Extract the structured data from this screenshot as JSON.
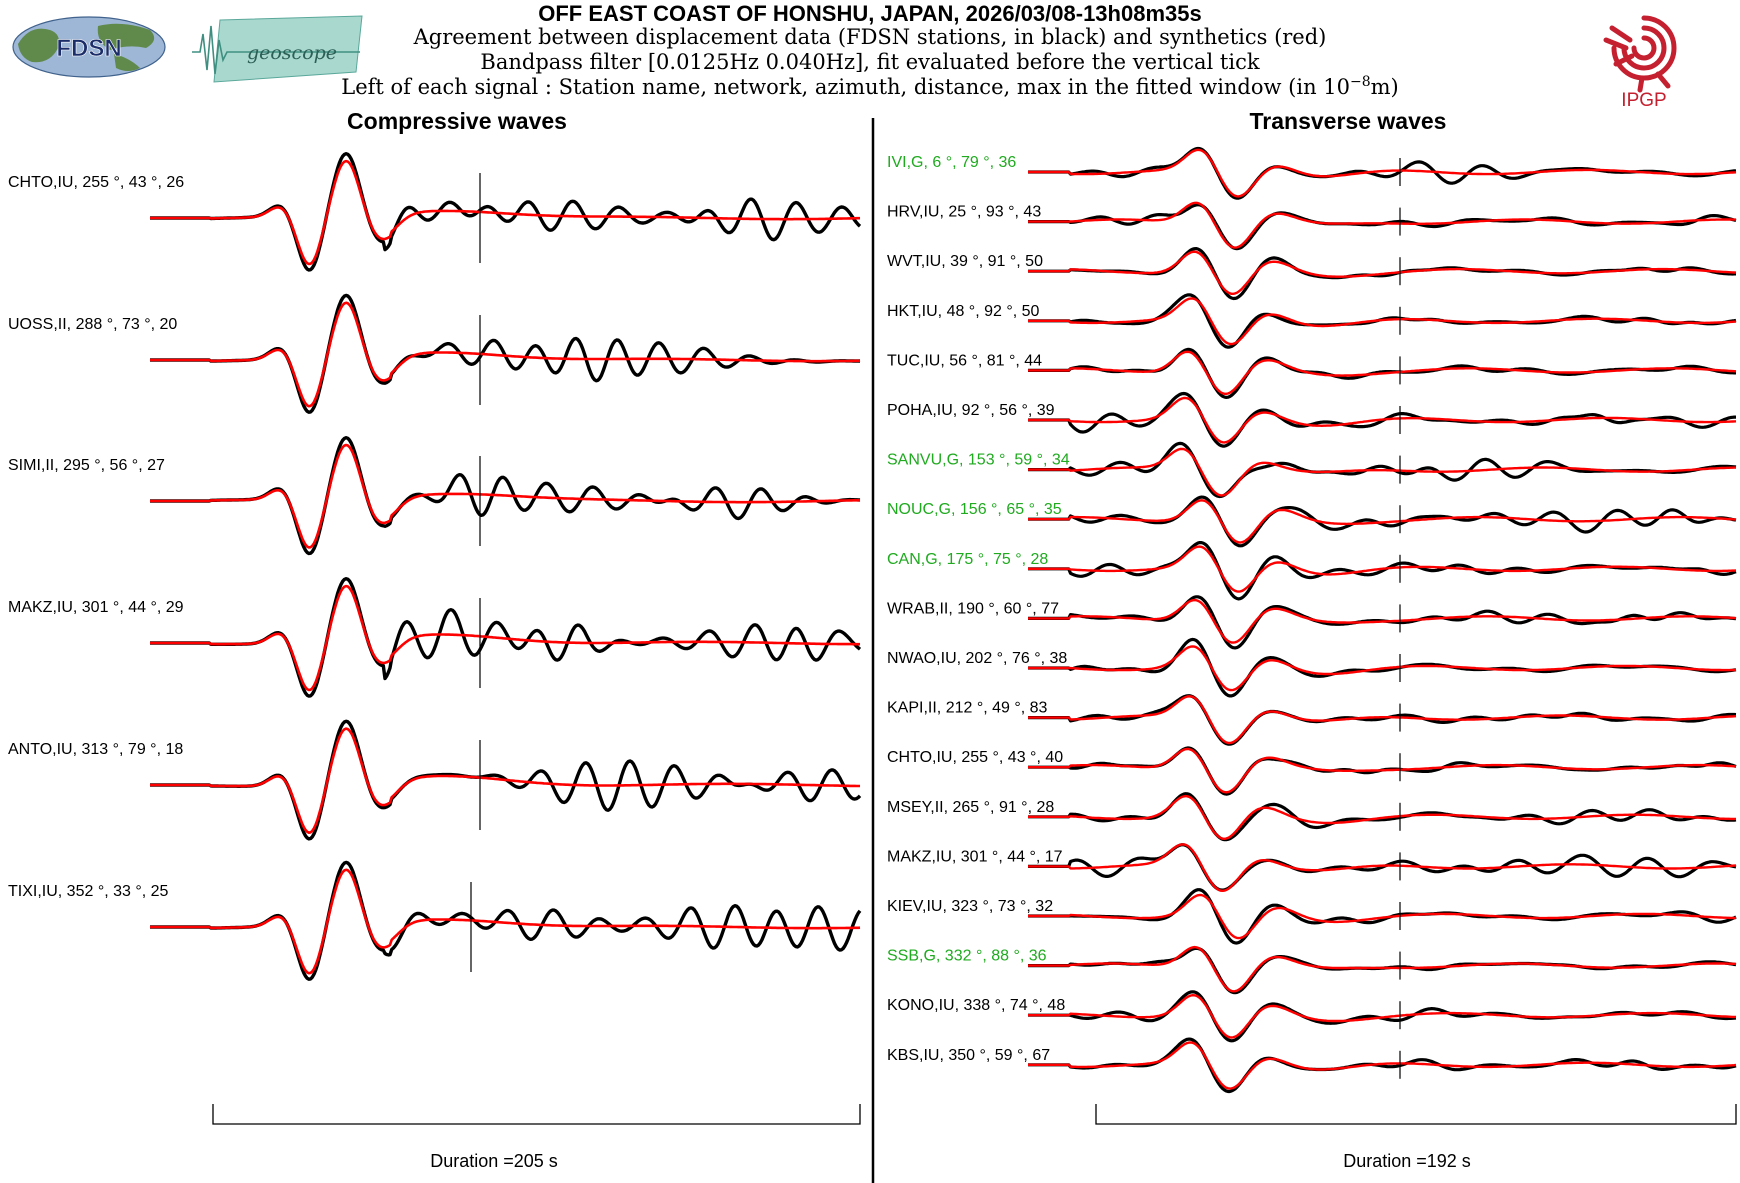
{
  "header": {
    "title": "OFF EAST COAST OF HONSHU, JAPAN, 2026/03/08-13h08m35s",
    "line1": "Agreement between displacement data (FDSN stations, in black) and synthetics (red)",
    "line2": "Bandpass filter [0.0125Hz 0.040Hz], fit evaluated before the vertical tick",
    "line3_prefix": "Left of each signal : Station name, network, azimuth, distance, max in the fitted window (in 10",
    "line3_exp": "−8",
    "line3_suffix": "m)"
  },
  "logos": {
    "fdsn": "FDSN",
    "geoscope": "geoscope",
    "ipgp": "IPGP"
  },
  "colors": {
    "data": "#000000",
    "synthetic": "#ff0000",
    "geoscope_station": "#1faa1f",
    "ipgp_red": "#c4202f"
  },
  "chart_data": [
    {
      "type": "line",
      "title": "Compressive waves",
      "duration_label": "Duration =205 s",
      "series": [
        {
          "station": "CHTO",
          "network": "IU",
          "azimuth": "255",
          "distance": "43",
          "max": "26",
          "label": "CHTO,IU, 255  °, 43 °, 26",
          "color": "black",
          "seed": 11,
          "noise": 1.0
        },
        {
          "station": "UOSS",
          "network": "II",
          "azimuth": "288",
          "distance": "73",
          "max": "20",
          "label": "UOSS,II, 288 °, 73 °, 20",
          "color": "black",
          "seed": 23,
          "noise": 0.9
        },
        {
          "station": "SIMI",
          "network": "II",
          "azimuth": "295",
          "distance": "56",
          "max": "27",
          "label": "SIMI,II, 295  °, 56 °, 27",
          "color": "black",
          "seed": 37,
          "noise": 0.8
        },
        {
          "station": "MAKZ",
          "network": "IU",
          "azimuth": "301",
          "distance": "44",
          "max": "29",
          "label": "MAKZ,IU, 301  °, 44 °, 29",
          "color": "black",
          "seed": 41,
          "noise": 1.1
        },
        {
          "station": "ANTO",
          "network": "IU",
          "azimuth": "313",
          "distance": "79",
          "max": "18",
          "label": "ANTO,IU, 313  °, 79 °, 18",
          "color": "black",
          "seed": 53,
          "noise": 0.7
        },
        {
          "station": "TIXI",
          "network": "IU",
          "azimuth": "352",
          "distance": "33",
          "max": "25",
          "label": "TIXI,IU, 352  °, 33 °, 25",
          "color": "black",
          "seed": 67,
          "noise": 1.0
        }
      ]
    },
    {
      "type": "line",
      "title": "Transverse waves",
      "duration_label": "Duration =192 s",
      "series": [
        {
          "station": "IVI",
          "network": "G",
          "azimuth": "6",
          "distance": "79",
          "max": "36",
          "label": "IVI,G, 6  °, 79 °, 36",
          "color": "green",
          "seed": 3,
          "noise": 0.25
        },
        {
          "station": "HRV",
          "network": "IU",
          "azimuth": "25",
          "distance": "93",
          "max": "43",
          "label": "HRV,IU, 25 °, 93 °, 43",
          "color": "black",
          "seed": 5,
          "noise": 0.2
        },
        {
          "station": "WVT",
          "network": "IU",
          "azimuth": "39",
          "distance": "91",
          "max": "50",
          "label": "WVT,IU, 39 °, 91 °, 50",
          "color": "black",
          "seed": 7,
          "noise": 0.2
        },
        {
          "station": "HKT",
          "network": "IU",
          "azimuth": "48",
          "distance": "92",
          "max": "50",
          "label": "HKT,IU, 48 °, 92 °, 50",
          "color": "black",
          "seed": 9,
          "noise": 0.2
        },
        {
          "station": "TUC",
          "network": "IU",
          "azimuth": "56",
          "distance": "81",
          "max": "44",
          "label": "TUC,IU, 56 °, 81 °, 44",
          "color": "black",
          "seed": 13,
          "noise": 0.2
        },
        {
          "station": "POHA",
          "network": "IU",
          "azimuth": "92",
          "distance": "56",
          "max": "39",
          "label": "POHA,IU, 92 °, 56 °, 39",
          "color": "black",
          "seed": 15,
          "noise": 0.35
        },
        {
          "station": "SANVU",
          "network": "G",
          "azimuth": "153",
          "distance": "59",
          "max": "34",
          "label": "SANVU,G, 153  °, 59 °, 34",
          "color": "green",
          "seed": 17,
          "noise": 0.5
        },
        {
          "station": "NOUC",
          "network": "G",
          "azimuth": "156",
          "distance": "65",
          "max": "35",
          "label": "NOUC,G, 156  °, 65 °, 35",
          "color": "green",
          "seed": 19,
          "noise": 0.5
        },
        {
          "station": "CAN",
          "network": "G",
          "azimuth": "175",
          "distance": "75",
          "max": "28",
          "label": "CAN,G, 175  °, 75 °, 28",
          "color": "green",
          "seed": 21,
          "noise": 0.45
        },
        {
          "station": "WRAB",
          "network": "II",
          "azimuth": "190",
          "distance": "60",
          "max": "77",
          "label": "WRAB,II, 190  °, 60 °, 77",
          "color": "black",
          "seed": 25,
          "noise": 0.3
        },
        {
          "station": "NWAO",
          "network": "IU",
          "azimuth": "202",
          "distance": "76",
          "max": "38",
          "label": "NWAO,IU, 202  °, 76 °, 38",
          "color": "black",
          "seed": 27,
          "noise": 0.25
        },
        {
          "station": "KAPI",
          "network": "II",
          "azimuth": "212",
          "distance": "49",
          "max": "83",
          "label": "KAPI,II, 212  °, 49 °, 83",
          "color": "black",
          "seed": 29,
          "noise": 0.2
        },
        {
          "station": "CHTO",
          "network": "IU",
          "azimuth": "255",
          "distance": "43",
          "max": "40",
          "label": "CHTO,IU, 255  °, 43 °, 40",
          "color": "black",
          "seed": 31,
          "noise": 0.2
        },
        {
          "station": "MSEY",
          "network": "II",
          "azimuth": "265",
          "distance": "91",
          "max": "28",
          "label": "MSEY,II, 265  °, 91 °, 28",
          "color": "black",
          "seed": 33,
          "noise": 0.25
        },
        {
          "station": "MAKZ",
          "network": "IU",
          "azimuth": "301",
          "distance": "44",
          "max": "17",
          "label": "MAKZ,IU, 301  °, 44 °, 17",
          "color": "black",
          "seed": 35,
          "noise": 0.4
        },
        {
          "station": "KIEV",
          "network": "IU",
          "azimuth": "323",
          "distance": "73",
          "max": "32",
          "label": "KIEV,IU, 323  °, 73 °, 32",
          "color": "black",
          "seed": 39,
          "noise": 0.25
        },
        {
          "station": "SSB",
          "network": "G",
          "azimuth": "332",
          "distance": "88",
          "max": "36",
          "label": "SSB,G, 332  °, 88 °, 36",
          "color": "green",
          "seed": 43,
          "noise": 0.2
        },
        {
          "station": "KONO",
          "network": "IU",
          "azimuth": "338",
          "distance": "74",
          "max": "48",
          "label": "KONO,IU, 338  °, 74 °, 48",
          "color": "black",
          "seed": 45,
          "noise": 0.2
        },
        {
          "station": "KBS",
          "network": "IU",
          "azimuth": "350",
          "distance": "59",
          "max": "67",
          "label": "KBS,IU, 350  °, 59 °, 67",
          "color": "black",
          "seed": 47,
          "noise": 0.2
        }
      ]
    }
  ]
}
